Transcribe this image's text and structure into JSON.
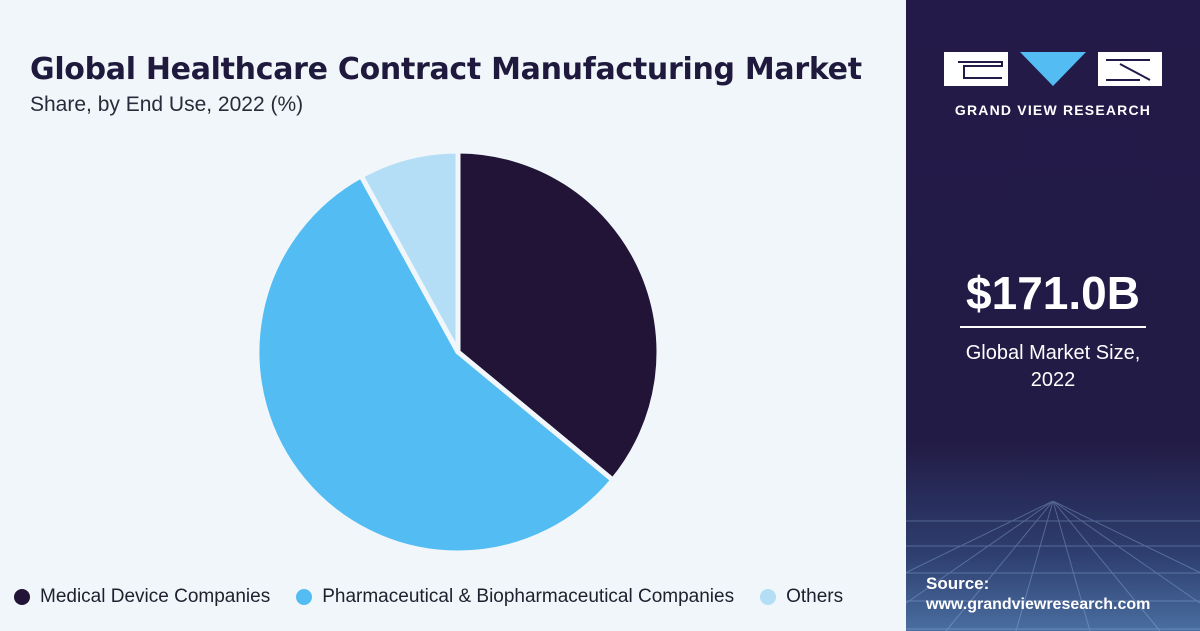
{
  "header": {
    "title": "Global Healthcare Contract Manufacturing Market",
    "subtitle": "Share, by End Use, 2022 (%)"
  },
  "chart_data": {
    "type": "pie",
    "title": "Global Healthcare Contract Manufacturing Market",
    "subtitle": "Share, by End Use, 2022 (%)",
    "categories": [
      "Medical Device Companies",
      "Pharmaceutical & Biopharmaceutical Companies",
      "Others"
    ],
    "values": [
      36,
      56,
      8
    ],
    "colors": [
      "#221437",
      "#53bcf3",
      "#b3def6"
    ],
    "legend_position": "bottom",
    "start_angle_deg": 0,
    "direction": "clockwise"
  },
  "sidebar": {
    "brand": "GRAND VIEW RESEARCH",
    "market_value": "$171.0B",
    "market_label_line1": "Global Market Size,",
    "market_label_line2": "2022",
    "source_title": "Source:",
    "source_url": "www.grandviewresearch.com"
  }
}
